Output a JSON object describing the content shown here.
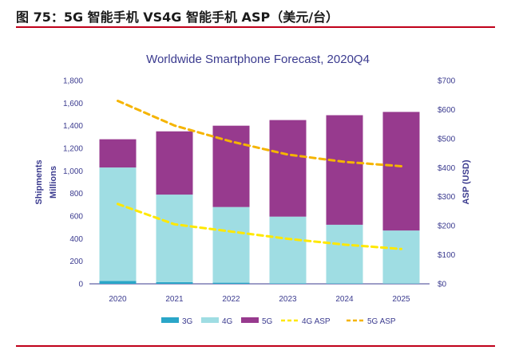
{
  "header": {
    "title": "图 75：5G 智能手机 VS4G 智能手机 ASP（美元/台）"
  },
  "chart_data": {
    "type": "bar",
    "title": "Worldwide Smartphone Forecast, 2020Q4",
    "categories": [
      "2020",
      "2021",
      "2022",
      "2023",
      "2024",
      "2025"
    ],
    "stacked": true,
    "ylabel": "Shipments Millions",
    "ylabel_lines": [
      "Shipments",
      "Millions"
    ],
    "y2label": "ASP (USD)",
    "ylim": [
      0,
      1800
    ],
    "y2lim": [
      0,
      700
    ],
    "yticks": [
      "0",
      "200",
      "400",
      "600",
      "800",
      "1,000",
      "1,200",
      "1,400",
      "1,600",
      "1,800"
    ],
    "y2ticks": [
      "$0",
      "$100",
      "$200",
      "$300",
      "$400",
      "$500",
      "$600",
      "$700"
    ],
    "series": [
      {
        "name": "3G",
        "kind": "bar",
        "axis": "left",
        "color": "#2aa6c8",
        "values": [
          25,
          15,
          10,
          5,
          3,
          2
        ]
      },
      {
        "name": "4G",
        "kind": "bar",
        "axis": "left",
        "color": "#9fdde3",
        "values": [
          1005,
          775,
          670,
          590,
          520,
          470
        ]
      },
      {
        "name": "5G",
        "kind": "bar",
        "axis": "left",
        "color": "#973a8e",
        "values": [
          250,
          560,
          720,
          855,
          970,
          1050
        ]
      },
      {
        "name": "4G ASP",
        "kind": "line",
        "axis": "right",
        "color": "#ffe800",
        "values": [
          275,
          205,
          180,
          155,
          135,
          120
        ]
      },
      {
        "name": "5G ASP",
        "kind": "line",
        "axis": "right",
        "color": "#f5b400",
        "values": [
          630,
          545,
          490,
          445,
          420,
          405
        ]
      }
    ],
    "legend_position": "bottom",
    "grid": false
  }
}
